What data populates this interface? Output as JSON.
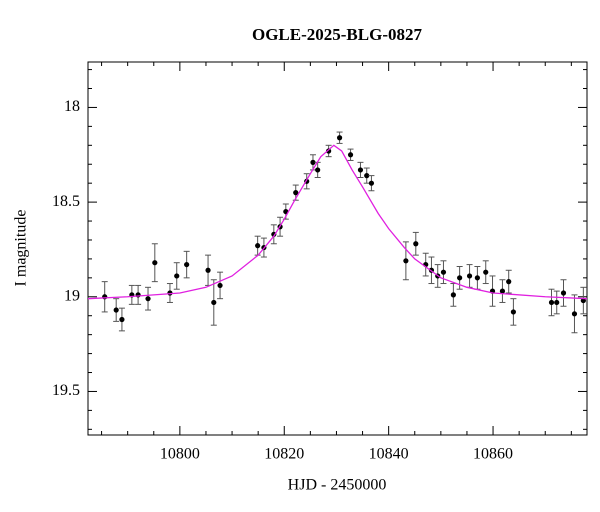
{
  "chart_data": {
    "type": "scatter",
    "title": "OGLE-2025-BLG-0827",
    "x_label": "HJD - 2450000",
    "y_label": "I magnitude",
    "xlim": [
      10782.4,
      10878.0
    ],
    "ylim": [
      17.76,
      19.73
    ],
    "y_inverted": true,
    "xticks": [
      10800,
      10820,
      10840,
      10860
    ],
    "yticks": [
      18,
      18.5,
      19,
      19.5
    ],
    "xminorticks": [
      10785,
      10790,
      10795,
      10805,
      10810,
      10815,
      10825,
      10830,
      10835,
      10845,
      10850,
      10855,
      10865,
      10870,
      10875
    ],
    "yminorticks": [
      17.8,
      17.9,
      18.1,
      18.2,
      18.3,
      18.4,
      18.6,
      18.7,
      18.8,
      18.9,
      19.1,
      19.2,
      19.3,
      19.4,
      19.6,
      19.7
    ],
    "series": [
      {
        "type": "scatter",
        "color": "#000000",
        "error_color": "#555555",
        "x": [
          10785.6,
          10787.8,
          10788.9,
          10790.8,
          10792.0,
          10793.9,
          10795.2,
          10798.1,
          10799.4,
          10801.3,
          10805.4,
          10806.5,
          10807.7,
          10814.9,
          10816.1,
          10818.0,
          10819.2,
          10820.3,
          10822.2,
          10824.3,
          10825.5,
          10826.4,
          10828.5,
          10830.6,
          10832.7,
          10834.6,
          10835.8,
          10836.7,
          10843.3,
          10845.2,
          10847.1,
          10848.2,
          10849.4,
          10850.5,
          10852.4,
          10853.6,
          10855.5,
          10857.0,
          10858.6,
          10859.9,
          10861.8,
          10863.0,
          10863.9,
          10871.2,
          10872.2,
          10873.5,
          10875.6,
          10877.3
        ],
        "values": [
          19.0,
          19.07,
          19.12,
          18.99,
          18.99,
          19.01,
          18.82,
          18.98,
          18.89,
          18.83,
          18.86,
          19.03,
          18.94,
          18.73,
          18.74,
          18.67,
          18.63,
          18.55,
          18.45,
          18.39,
          18.29,
          18.33,
          18.23,
          18.16,
          18.25,
          18.33,
          18.36,
          18.4,
          18.81,
          18.72,
          18.83,
          18.86,
          18.89,
          18.87,
          18.99,
          18.9,
          18.89,
          18.9,
          18.87,
          18.97,
          18.97,
          18.92,
          19.08,
          19.03,
          19.03,
          18.98,
          19.09,
          19.02
        ],
        "errors": [
          0.08,
          0.06,
          0.06,
          0.05,
          0.05,
          0.06,
          0.1,
          0.05,
          0.07,
          0.07,
          0.08,
          0.12,
          0.07,
          0.05,
          0.05,
          0.05,
          0.05,
          0.04,
          0.04,
          0.04,
          0.04,
          0.04,
          0.03,
          0.03,
          0.03,
          0.04,
          0.04,
          0.04,
          0.1,
          0.06,
          0.06,
          0.07,
          0.06,
          0.06,
          0.06,
          0.06,
          0.06,
          0.06,
          0.06,
          0.08,
          0.06,
          0.06,
          0.07,
          0.07,
          0.06,
          0.07,
          0.1,
          0.07
        ]
      },
      {
        "type": "line",
        "color": "#e020e0",
        "x": [
          10782.4,
          10790,
          10800,
          10805,
          10810,
          10815,
          10818,
          10820,
          10822,
          10825,
          10827,
          10829.5,
          10831,
          10833,
          10835,
          10838,
          10840,
          10843,
          10845,
          10850,
          10855,
          10860,
          10870,
          10878
        ],
        "values": [
          19.01,
          19.0,
          18.98,
          18.95,
          18.89,
          18.78,
          18.68,
          18.59,
          18.49,
          18.35,
          18.26,
          18.2,
          18.23,
          18.33,
          18.42,
          18.56,
          18.64,
          18.74,
          18.8,
          18.9,
          18.95,
          18.98,
          19.0,
          19.01
        ]
      }
    ]
  }
}
